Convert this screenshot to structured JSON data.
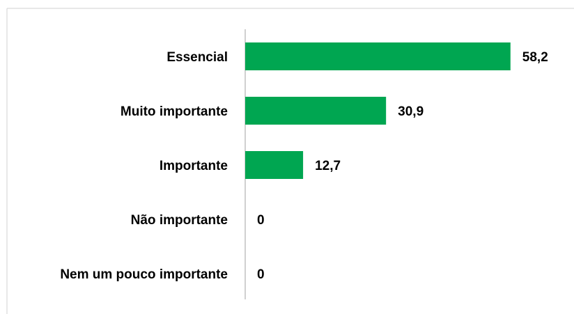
{
  "chart_data": {
    "type": "bar",
    "orientation": "horizontal",
    "categories": [
      "Essencial",
      "Muito importante",
      "Importante",
      "Não importante",
      "Nem um pouco importante"
    ],
    "values": [
      58.2,
      30.9,
      12.7,
      0,
      0
    ],
    "value_labels": [
      "58,2",
      "30,9",
      "12,7",
      "0",
      "0"
    ],
    "color": "#00a651",
    "xlim": [
      0,
      70
    ]
  }
}
